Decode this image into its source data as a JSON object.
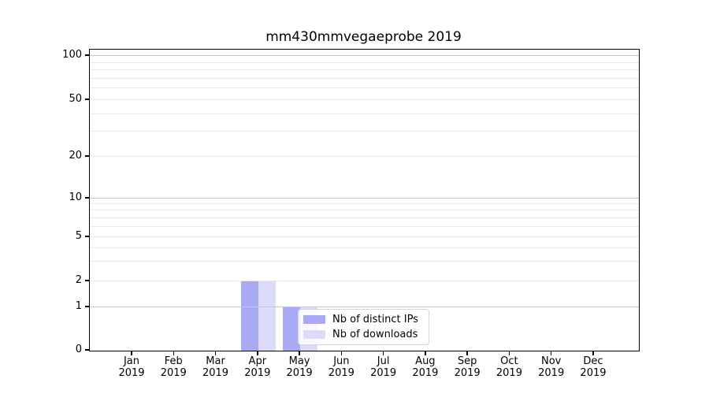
{
  "chart_data": {
    "type": "bar",
    "title": "mm430mmvegaeprobe 2019",
    "categories": [
      "Jan",
      "Feb",
      "Mar",
      "Apr",
      "May",
      "Jun",
      "Jul",
      "Aug",
      "Sep",
      "Oct",
      "Nov",
      "Dec"
    ],
    "category_year": "2019",
    "series": [
      {
        "name": "Nb of distinct IPs",
        "color": "#a9a9f4",
        "values": [
          0,
          0,
          0,
          2,
          1,
          0,
          0,
          0,
          0,
          0,
          0,
          0
        ]
      },
      {
        "name": "Nb of downloads",
        "color": "#dcdcfa",
        "values": [
          0,
          0,
          0,
          2,
          1,
          0,
          0,
          0,
          0,
          0,
          0,
          0
        ]
      }
    ],
    "xlabel": "",
    "ylabel": "",
    "y_axis": {
      "scale": "symlog-like",
      "range": [
        0,
        100
      ],
      "tick_labels": [
        "0",
        "1",
        "2",
        "5",
        "10",
        "20",
        "50",
        "100"
      ],
      "ticks": [
        {
          "v": 0,
          "label": "0",
          "f": 0.0
        },
        {
          "v": 1,
          "label": "1",
          "f": 0.144
        },
        {
          "v": 2,
          "label": "2",
          "f": 0.2304
        },
        {
          "v": 5,
          "label": "5",
          "f": 0.377
        },
        {
          "v": 10,
          "label": "10",
          "f": 0.5052
        },
        {
          "v": 20,
          "label": "20",
          "f": 0.644
        },
        {
          "v": 50,
          "label": "50",
          "f": 0.8325
        },
        {
          "v": 100,
          "label": "100",
          "f": 0.9791
        }
      ],
      "minor_gridlines": [
        {
          "v": 3,
          "f": 0.2958
        },
        {
          "v": 4,
          "f": 0.3403
        },
        {
          "v": 6,
          "f": 0.411
        },
        {
          "v": 7,
          "f": 0.4398
        },
        {
          "v": 8,
          "f": 0.466
        },
        {
          "v": 9,
          "f": 0.4869
        },
        {
          "v": 30,
          "f": 0.7277
        },
        {
          "v": 40,
          "f": 0.7866
        },
        {
          "v": 60,
          "f": 0.8717
        },
        {
          "v": 70,
          "f": 0.9031
        },
        {
          "v": 80,
          "f": 0.9319
        },
        {
          "v": 90,
          "f": 0.9568
        }
      ],
      "major_gridline_values": [
        1,
        10,
        100
      ]
    },
    "grid": true,
    "legend": {
      "position": "lower-center",
      "entries": [
        "Nb of distinct IPs",
        "Nb of downloads"
      ]
    },
    "colors": {
      "grid_major": "#c6c6c6",
      "grid_minor": "#eaeaea",
      "axis": "#000000",
      "text": "#000000",
      "background": "#ffffff"
    }
  }
}
